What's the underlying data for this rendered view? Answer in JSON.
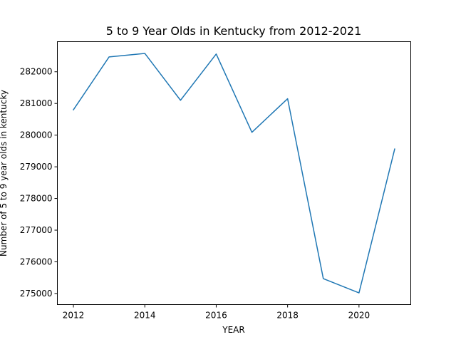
{
  "chart_data": {
    "type": "line",
    "title": "5 to 9 Year Olds in Kentucky from 2012-2021",
    "xlabel": "YEAR",
    "ylabel": "Number of 5 to 9 year olds in kentucky",
    "xlim": [
      2011.55,
      2021.45
    ],
    "ylim": [
      274650,
      282950
    ],
    "x_ticks": [
      2012,
      2014,
      2016,
      2018,
      2020
    ],
    "y_ticks": [
      275000,
      276000,
      277000,
      278000,
      279000,
      280000,
      281000,
      282000
    ],
    "grid": false,
    "series": [
      {
        "color": "#1f77b4",
        "x": [
          2012,
          2013,
          2014,
          2015,
          2016,
          2017,
          2018,
          2019,
          2020,
          2021
        ],
        "values": [
          280800,
          282470,
          282580,
          281100,
          282560,
          280090,
          281150,
          275470,
          275020,
          279560
        ]
      }
    ]
  }
}
